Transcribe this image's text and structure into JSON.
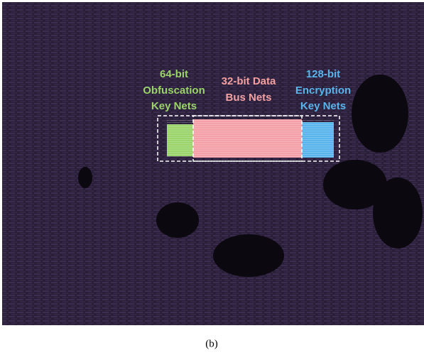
{
  "labels": [
    {
      "lines": [
        "64-bit",
        "Obfuscation",
        "Key Nets"
      ]
    },
    {
      "lines": [
        "32-bit Data",
        "Bus Nets"
      ]
    },
    {
      "lines": [
        "128-bit",
        "Encryption",
        "Key Nets"
      ]
    }
  ],
  "caption": "(b)"
}
